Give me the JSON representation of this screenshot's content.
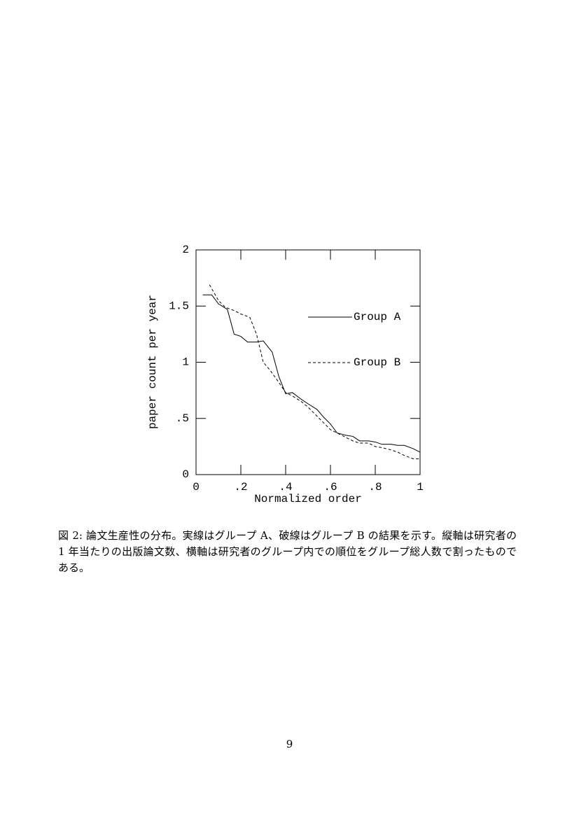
{
  "chart_data": {
    "type": "line",
    "xlabel": "Normalized order",
    "ylabel": "paper count per year",
    "xlim": [
      0,
      1
    ],
    "ylim": [
      0,
      2
    ],
    "xticks": [
      0,
      {
        "value": 0.2,
        "label": ".2"
      },
      {
        "value": 0.4,
        "label": ".4"
      },
      {
        "value": 0.6,
        "label": ".6"
      },
      {
        "value": 0.8,
        "label": ".8"
      },
      1
    ],
    "yticks": [
      0,
      {
        "value": 0.5,
        "label": ".5"
      },
      1,
      1.5,
      2
    ],
    "legend": "right",
    "series": [
      {
        "name": "Group A",
        "color": "#000000",
        "style": "solid",
        "x": [
          0.03,
          0.07,
          0.1,
          0.14,
          0.17,
          0.2,
          0.23,
          0.27,
          0.3,
          0.34,
          0.37,
          0.4,
          0.43,
          0.47,
          0.5,
          0.54,
          0.57,
          0.6,
          0.63,
          0.67,
          0.7,
          0.73,
          0.77,
          0.8,
          0.83,
          0.87,
          0.9,
          0.93,
          0.97,
          1.0
        ],
        "values": [
          1.6,
          1.6,
          1.52,
          1.47,
          1.25,
          1.23,
          1.18,
          1.18,
          1.19,
          1.09,
          0.87,
          0.72,
          0.73,
          0.67,
          0.63,
          0.58,
          0.51,
          0.45,
          0.37,
          0.35,
          0.34,
          0.3,
          0.3,
          0.29,
          0.27,
          0.27,
          0.26,
          0.26,
          0.23,
          0.2
        ]
      },
      {
        "name": "Group B",
        "color": "#000000",
        "style": "dashed",
        "x": [
          0.06,
          0.1,
          0.13,
          0.17,
          0.2,
          0.24,
          0.27,
          0.3,
          0.33,
          0.37,
          0.4,
          0.43,
          0.47,
          0.5,
          0.54,
          0.57,
          0.6,
          0.63,
          0.67,
          0.7,
          0.73,
          0.77,
          0.8,
          0.83,
          0.87,
          0.9,
          0.93,
          0.97,
          1.0
        ],
        "values": [
          1.69,
          1.55,
          1.49,
          1.46,
          1.43,
          1.4,
          1.25,
          1.0,
          0.93,
          0.82,
          0.73,
          0.7,
          0.65,
          0.6,
          0.52,
          0.46,
          0.4,
          0.37,
          0.33,
          0.3,
          0.28,
          0.28,
          0.25,
          0.24,
          0.22,
          0.2,
          0.17,
          0.14,
          0.14
        ]
      }
    ]
  },
  "caption": "図 2: 論文生産性の分布。実線はグループ A、破線はグループ B の結果を示す。縦軸は研究者の 1 年当たりの出版論文数、横軸は研究者のグループ内での順位をグループ総人数で割ったものである。",
  "page_number": "9"
}
